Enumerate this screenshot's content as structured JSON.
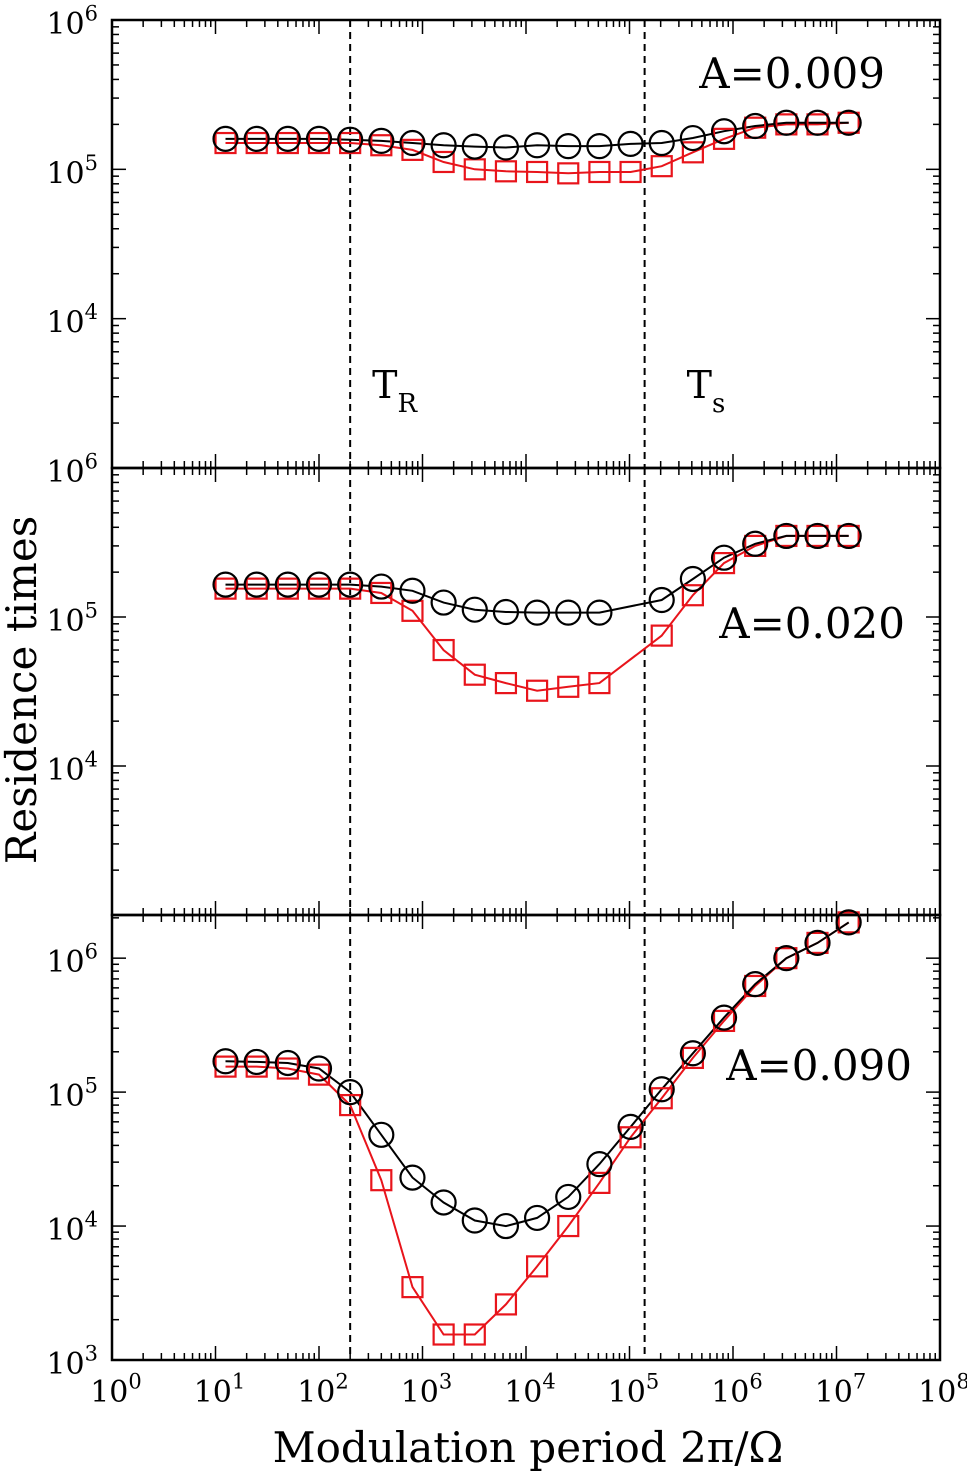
{
  "chart_data": {
    "type": "scatter",
    "xlabel": "Modulation period 2π/Ω",
    "ylabel": "Residence times",
    "xscale": "log",
    "yscale": "log",
    "xlim": [
      1,
      100000000
    ],
    "x_ticks": [
      {
        "base": "10",
        "exp": "0"
      },
      {
        "base": "10",
        "exp": "1"
      },
      {
        "base": "10",
        "exp": "2"
      },
      {
        "base": "10",
        "exp": "3"
      },
      {
        "base": "10",
        "exp": "4"
      },
      {
        "base": "10",
        "exp": "5"
      },
      {
        "base": "10",
        "exp": "6"
      },
      {
        "base": "10",
        "exp": "7"
      },
      {
        "base": "10",
        "exp": "8"
      }
    ],
    "vlines": [
      {
        "x": 200,
        "label": "T",
        "sub": "R"
      },
      {
        "x": 140000,
        "label": "T",
        "sub": "s"
      }
    ],
    "series_colors": {
      "circles": "#000000",
      "squares": "#e8141b"
    },
    "panels": [
      {
        "annotation": "A=0.009",
        "ylim": [
          1000,
          1000000
        ],
        "y_ticks": [
          {
            "value": 1000000,
            "base": "10",
            "exp": "6"
          },
          {
            "value": 100000,
            "base": "10",
            "exp": "5"
          },
          {
            "value": 10000,
            "base": "10",
            "exp": "4"
          }
        ],
        "x": [
          12.5,
          25,
          50,
          100,
          200,
          400,
          800,
          1600,
          3200,
          6400,
          12800,
          25600,
          51200,
          102400,
          204800,
          409600,
          819200,
          1638400,
          3276800,
          6553600,
          13107200
        ],
        "circles": [
          160000,
          160000,
          160000,
          160000,
          158000,
          155000,
          150000,
          145000,
          142000,
          140000,
          145000,
          143000,
          143000,
          148000,
          150000,
          162000,
          180000,
          195000,
          205000,
          205000,
          205000
        ],
        "squares": [
          150000,
          150000,
          150000,
          150000,
          150000,
          145000,
          135000,
          112000,
          100000,
          97000,
          96000,
          94000,
          96000,
          96000,
          105000,
          130000,
          160000,
          190000,
          200000,
          200000,
          205000
        ]
      },
      {
        "annotation": "A=0.020",
        "ylim": [
          1000,
          1000000
        ],
        "y_ticks": [
          {
            "value": 1000000,
            "base": "10",
            "exp": "6"
          },
          {
            "value": 100000,
            "base": "10",
            "exp": "5"
          },
          {
            "value": 10000,
            "base": "10",
            "exp": "4"
          }
        ],
        "x": [
          12.5,
          25,
          50,
          100,
          200,
          400,
          800,
          1600,
          3200,
          6400,
          12800,
          25600,
          51200,
          204800,
          409600,
          819200,
          1638400,
          3276800,
          6553600,
          13107200
        ],
        "circles": [
          165000,
          165000,
          165000,
          165000,
          165000,
          160000,
          150000,
          125000,
          112000,
          108000,
          107000,
          107000,
          107000,
          130000,
          180000,
          250000,
          310000,
          350000,
          350000,
          350000
        ],
        "x_squares": [
          12.5,
          25,
          50,
          100,
          200,
          400,
          800,
          1600,
          3200,
          6400,
          12800,
          25600,
          51200,
          204800,
          409600,
          819200,
          1638400,
          3276800,
          6553600,
          13107200
        ],
        "squares": [
          155000,
          155000,
          155000,
          155000,
          155000,
          145000,
          110000,
          60000,
          41000,
          36000,
          32000,
          34000,
          36000,
          75000,
          140000,
          230000,
          300000,
          350000,
          350000,
          350000
        ]
      },
      {
        "annotation": "A=0.090",
        "ylim": [
          1000,
          2100000
        ],
        "y_ticks": [
          {
            "value": 1000000,
            "base": "10",
            "exp": "6"
          },
          {
            "value": 100000,
            "base": "10",
            "exp": "5"
          },
          {
            "value": 10000,
            "base": "10",
            "exp": "4"
          },
          {
            "value": 1000,
            "base": "10",
            "exp": "3"
          }
        ],
        "x": [
          12.5,
          25,
          50,
          100,
          200,
          400,
          800,
          1600,
          3200,
          6400,
          12800,
          25600,
          51200,
          102400,
          204800,
          409600,
          819200,
          1638400,
          3276800,
          6553600,
          13107200
        ],
        "circles": [
          170000,
          168000,
          165000,
          150000,
          100000,
          48000,
          23000,
          15000,
          11000,
          10000,
          11500,
          16500,
          29000,
          55000,
          105000,
          195000,
          360000,
          640000,
          1000000,
          1300000,
          1850000
        ],
        "squares": [
          155000,
          155000,
          150000,
          135000,
          80000,
          22000,
          3500,
          1550,
          1550,
          2600,
          5000,
          10000,
          21000,
          46000,
          90000,
          180000,
          340000,
          620000,
          1000000,
          1300000,
          1850000
        ]
      }
    ]
  }
}
